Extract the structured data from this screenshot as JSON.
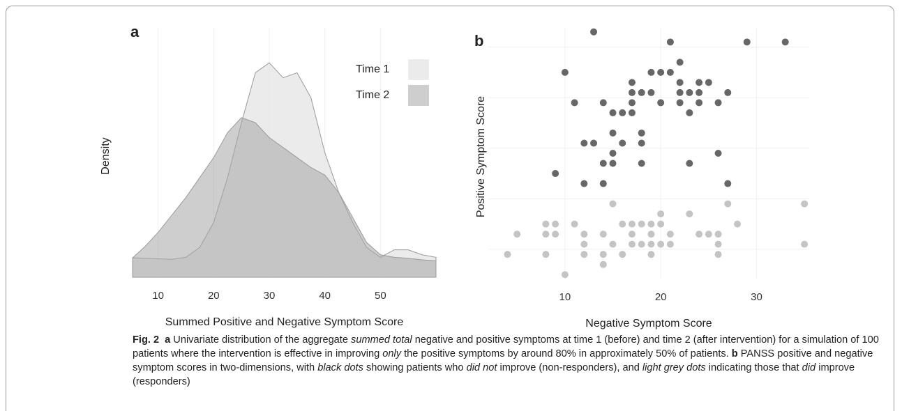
{
  "chart_data": [
    {
      "type": "area",
      "panel_label": "a",
      "x_label": "Summed Positive and Negative Symptom Score",
      "y_label": "Density",
      "x": [
        5.4,
        7.5,
        10,
        12.5,
        15,
        17.5,
        20,
        22.5,
        25,
        27.5,
        30,
        32.5,
        35,
        37.5,
        40,
        42.5,
        45,
        47.5,
        50,
        52.5,
        55,
        57.5,
        60
      ],
      "series": [
        {
          "name": "Time 1",
          "color": "#e4e4e4",
          "values": [
            0.0039,
            0.0038,
            0.0037,
            0.0036,
            0.004,
            0.006,
            0.011,
            0.02,
            0.031,
            0.041,
            0.043,
            0.04,
            0.041,
            0.036,
            0.025,
            0.017,
            0.011,
            0.006,
            0.004,
            0.0055,
            0.0055,
            0.0045,
            0.004
          ]
        },
        {
          "name": "Time 2",
          "color": "#a6a6a6",
          "values": [
            0.0039,
            0.006,
            0.009,
            0.0125,
            0.016,
            0.02,
            0.024,
            0.029,
            0.032,
            0.031,
            0.028,
            0.026,
            0.024,
            0.022,
            0.0205,
            0.017,
            0.012,
            0.007,
            0.0045,
            0.004,
            0.0038,
            0.0035,
            0.0033
          ]
        }
      ],
      "xlim": [
        5.4,
        60
      ],
      "xticks": [
        10,
        20,
        30,
        40,
        50
      ],
      "ylim": [
        0,
        0.05
      ],
      "grid": true,
      "legend": "top-right"
    },
    {
      "type": "scatter",
      "panel_label": "b",
      "x_label": "Negative Symptom Score",
      "y_label": "Positive Symptom Score",
      "series": [
        {
          "color": "#676767",
          "x": [
            13,
            21,
            29,
            33,
            22,
            10,
            19,
            20,
            21,
            17,
            22,
            24,
            25,
            17,
            18,
            19,
            22,
            23,
            24,
            27,
            11,
            14,
            17,
            20,
            22,
            24,
            26,
            15,
            16,
            17,
            23,
            15,
            18,
            12,
            13,
            16,
            18,
            15,
            26,
            14,
            15,
            18,
            23,
            9,
            12,
            14,
            27
          ],
          "y": [
            27,
            26,
            26,
            26,
            24,
            23,
            23,
            23,
            23,
            22,
            22,
            22,
            22,
            21,
            21,
            21,
            21,
            21,
            21,
            21,
            20,
            20,
            20,
            20,
            20,
            20,
            20,
            19,
            19,
            19,
            19,
            17,
            17,
            16,
            16,
            16,
            16,
            15,
            15,
            14,
            14,
            14,
            14,
            13,
            12,
            12,
            12
          ]
        },
        {
          "color": "#c4c4c4",
          "x": [
            15,
            27,
            35,
            20,
            23,
            8,
            9,
            11,
            16,
            17,
            18,
            19,
            20,
            28,
            5,
            8,
            9,
            12,
            14,
            17,
            19,
            21,
            24,
            25,
            26,
            12,
            15,
            17,
            18,
            19,
            20,
            21,
            26,
            35,
            4,
            8,
            12,
            14,
            16,
            19,
            26,
            14,
            10
          ],
          "y": [
            10,
            10,
            10,
            9,
            9,
            8,
            8,
            8,
            8,
            8,
            8,
            8,
            8,
            8,
            7,
            7,
            7,
            7,
            7,
            7,
            7,
            7,
            7,
            7,
            7,
            6,
            6,
            6,
            6,
            6,
            6,
            6,
            6,
            6,
            5,
            5,
            5,
            5,
            5,
            5,
            5,
            4,
            3
          ]
        }
      ],
      "xlim": [
        2,
        35.5
      ],
      "xticks": [
        10,
        20,
        30
      ],
      "ylim": [
        2.6,
        27.4
      ],
      "ygrid": [
        5.5,
        10.5,
        15.5,
        20.5,
        25.5
      ],
      "grid": true
    }
  ],
  "caption": [
    {
      "text": "Fig. 2",
      "style": "bold"
    },
    {
      "text": "a",
      "style": "bold gap"
    },
    {
      "text": " Univariate distribution of the aggregate ",
      "style": "normal"
    },
    {
      "text": "summed total",
      "style": "italic"
    },
    {
      "text": " negative and positive symptoms at time 1 (before) and time 2 (after intervention) for a simulation of 100 patients where the intervention is effective in improving ",
      "style": "normal"
    },
    {
      "text": "only",
      "style": "italic"
    },
    {
      "text": " the positive symptoms by around 80% in approximately 50% of patients. ",
      "style": "normal"
    },
    {
      "text": "b",
      "style": "bold"
    },
    {
      "text": " PANSS positive and negative symptom scores in two-dimensions, with ",
      "style": "normal"
    },
    {
      "text": "black dots",
      "style": "italic"
    },
    {
      "text": " showing patients who ",
      "style": "normal"
    },
    {
      "text": "did not",
      "style": "italic"
    },
    {
      "text": " improve (non-responders), and ",
      "style": "normal"
    },
    {
      "text": "light grey dots",
      "style": "italic"
    },
    {
      "text": " indicating those that ",
      "style": "normal"
    },
    {
      "text": "did",
      "style": "italic"
    },
    {
      "text": " improve (responders)",
      "style": "normal"
    }
  ]
}
